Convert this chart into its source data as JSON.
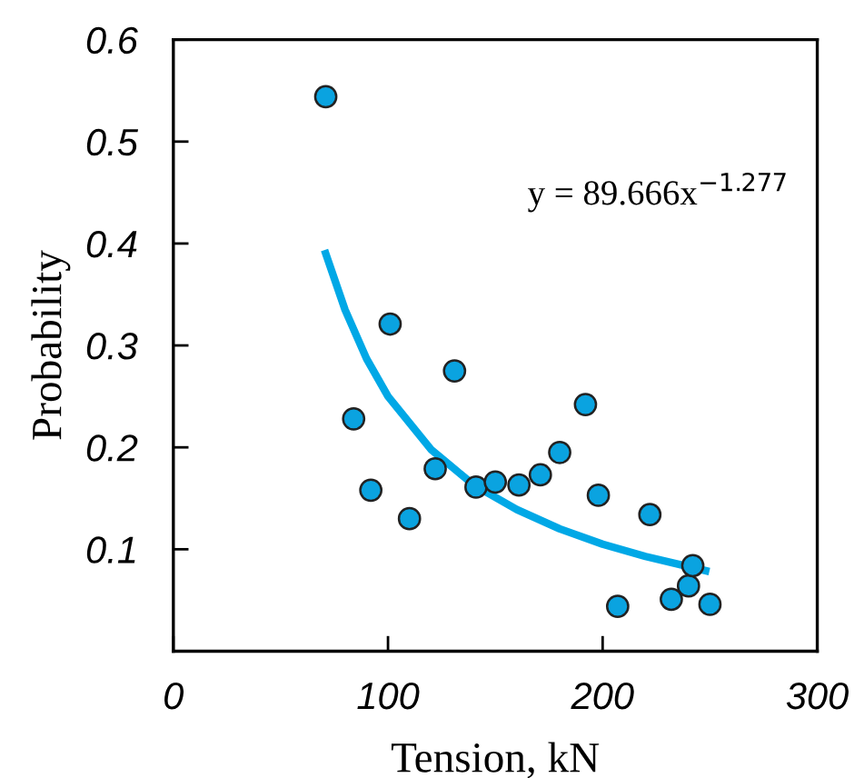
{
  "chart_data": {
    "type": "scatter",
    "xlabel": "Tension, kN",
    "ylabel": "Probability",
    "xlim": [
      0,
      300
    ],
    "xticks": [
      0,
      100,
      200,
      300
    ],
    "ylim": [
      0,
      0.6
    ],
    "yticks": [
      0.1,
      0.2,
      0.3,
      0.4,
      0.5,
      0.6
    ],
    "grid": false,
    "legend": false,
    "annotations": [
      "y = 89.666x$^{−1.277}$"
    ],
    "series": [
      {
        "marker": "circle",
        "color": "#0aa3e0",
        "x": [
          71,
          84,
          92,
          101,
          110,
          122,
          131,
          141,
          150,
          161,
          171,
          180,
          192,
          198,
          207,
          222,
          232,
          240,
          242,
          250
        ],
        "values": [
          0.544,
          0.228,
          0.158,
          0.321,
          0.13,
          0.179,
          0.275,
          0.161,
          0.166,
          0.163,
          0.173,
          0.195,
          0.242,
          0.153,
          0.044,
          0.134,
          0.051,
          0.064,
          0.084,
          0.046
        ]
      },
      {
        "type": "line",
        "color": "#00a8e6",
        "line_style": "solid",
        "x": [
          71,
          80,
          90,
          100,
          120,
          140,
          160,
          180,
          200,
          220,
          248
        ],
        "values": [
          0.39,
          0.335,
          0.287,
          0.25,
          0.198,
          0.163,
          0.139,
          0.12,
          0.105,
          0.093,
          0.079
        ]
      }
    ]
  }
}
